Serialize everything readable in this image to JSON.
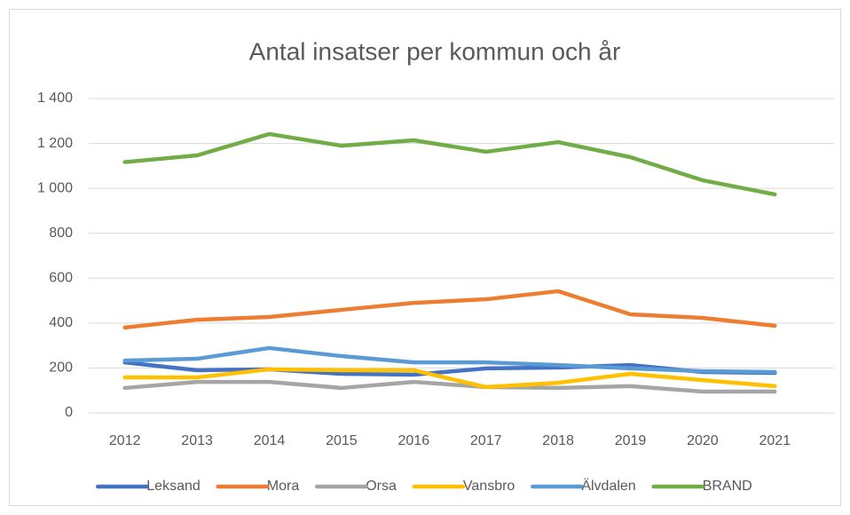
{
  "chart_data": {
    "type": "line",
    "title": "Antal insatser per kommun och år",
    "categories": [
      "2012",
      "2013",
      "2014",
      "2015",
      "2016",
      "2017",
      "2018",
      "2019",
      "2020",
      "2021"
    ],
    "series": [
      {
        "name": "Leksand",
        "color": "#4472c4",
        "values": [
          225,
          190,
          194,
          174,
          170,
          198,
          202,
          213,
          182,
          178
        ]
      },
      {
        "name": "Mora",
        "color": "#ed7d31",
        "values": [
          380,
          415,
          427,
          459,
          490,
          506,
          542,
          439,
          423,
          388
        ]
      },
      {
        "name": "Orsa",
        "color": "#a5a5a5",
        "values": [
          111,
          138,
          138,
          111,
          138,
          115,
          111,
          119,
          95,
          95
        ]
      },
      {
        "name": "Vansbro",
        "color": "#ffc000",
        "values": [
          158,
          158,
          194,
          190,
          190,
          115,
          134,
          174,
          146,
          119
        ]
      },
      {
        "name": "Älvdalen",
        "color": "#5b9bd5",
        "values": [
          233,
          241,
          289,
          253,
          225,
          225,
          213,
          198,
          186,
          182
        ]
      },
      {
        "name": "BRAND",
        "color": "#70ad47",
        "values": [
          1117,
          1147,
          1242,
          1190,
          1214,
          1163,
          1206,
          1139,
          1036,
          973
        ]
      }
    ],
    "ylim": [
      0,
      1400
    ],
    "yticks": [
      0,
      200,
      400,
      600,
      800,
      {
        "value": 1000,
        "label": "1 000"
      },
      {
        "value": 1200,
        "label": "1 200"
      },
      {
        "value": 1400,
        "label": "1 400"
      }
    ],
    "grid": true,
    "legend": "bottom"
  }
}
